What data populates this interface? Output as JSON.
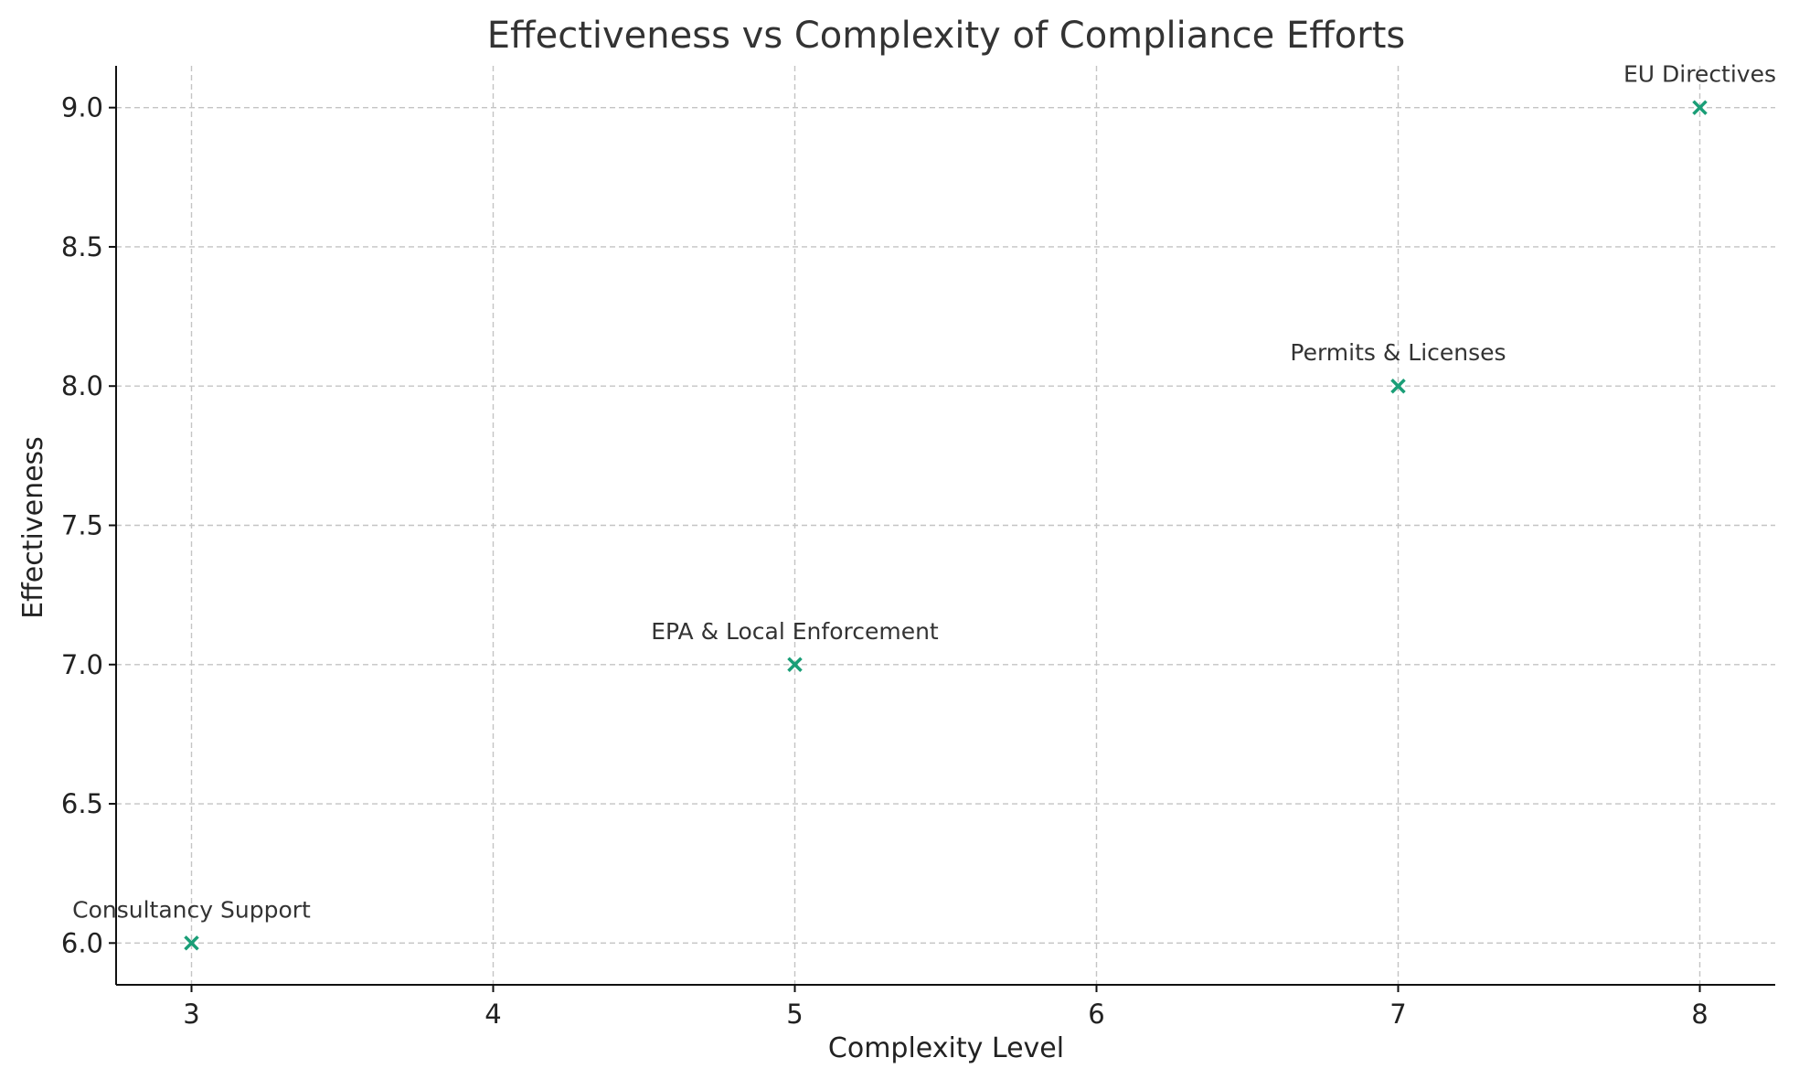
{
  "chart_data": {
    "type": "scatter",
    "title": "Effectiveness vs Complexity of Compliance Efforts",
    "xlabel": "Complexity Level",
    "ylabel": "Effectiveness",
    "xlim": [
      2.75,
      8.25
    ],
    "ylim": [
      5.85,
      9.15
    ],
    "xticks": [
      3,
      4,
      5,
      6,
      7,
      8
    ],
    "xtick_labels": [
      "3",
      "4",
      "5",
      "6",
      "7",
      "8"
    ],
    "yticks": [
      6.0,
      6.5,
      7.0,
      7.5,
      8.0,
      8.5,
      9.0
    ],
    "ytick_labels": [
      "6.0",
      "6.5",
      "7.0",
      "7.5",
      "8.0",
      "8.5",
      "9.0"
    ],
    "grid": true,
    "marker": "x",
    "marker_color": "#1a9e77",
    "points": [
      {
        "label": "Consultancy Support",
        "x": 3,
        "y": 6
      },
      {
        "label": "EPA & Local Enforcement",
        "x": 5,
        "y": 7
      },
      {
        "label": "Permits & Licenses",
        "x": 7,
        "y": 8
      },
      {
        "label": "EU Directives",
        "x": 8,
        "y": 9
      }
    ]
  }
}
